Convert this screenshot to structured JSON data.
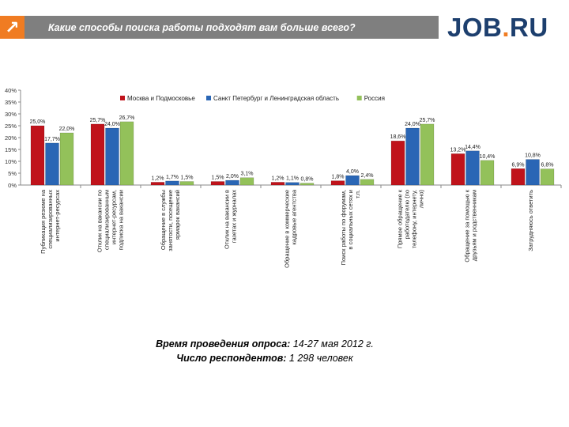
{
  "header": {
    "title": "Какие способы поиска работы подходят вам больше всего?",
    "arrow_icon": "arrow-up-right-icon"
  },
  "logo": {
    "part1": "JOB",
    "dot": ".",
    "part2": "RU"
  },
  "colors": {
    "orange": "#f07c22",
    "navy": "#1d3f6e",
    "gray": "#7f7f7f"
  },
  "footer": {
    "date_label": "Время проведения опроса:",
    "date_value": "14-27 мая 2012 г.",
    "respondents_label": "Число респондентов:",
    "respondents_value": "1 298 человек"
  },
  "chart_data": {
    "type": "bar",
    "ylim": [
      0,
      40
    ],
    "yticks": [
      "0%",
      "5%",
      "10%",
      "15%",
      "20%",
      "25%",
      "30%",
      "35%",
      "40%"
    ],
    "legend_position": "top",
    "categories": [
      "Публикация резюме на специализированных интернет-ресурсах",
      "Отклик на вакансии по специализированным интернет-ресурсам, подписка на вакансии",
      "Обращение в службы занятости, посещение ярмарок вакансий",
      "Отклик на вакансии в газетах и журналах",
      "Обращение в коммерческие кадровые агентства",
      "Поиск работы по форумам, в социальных сетях и т.п.",
      "Прямое обращение к работодателю (по телефону, интернету, лично)",
      "Обращение за помощью к друзьям и родственникам",
      "Затрудняюсь ответить"
    ],
    "series": [
      {
        "name": "Москва и Подмосковье",
        "color": "#c0131b",
        "values": [
          25.0,
          25.7,
          1.2,
          1.5,
          1.2,
          1.8,
          18.6,
          13.2,
          6.9
        ],
        "labels": [
          "25,0%",
          "25,7%",
          "1,2%",
          "1,5%",
          "1,2%",
          "1,8%",
          "18,6%",
          "13,2%",
          "6,9%"
        ]
      },
      {
        "name": "Санкт Петербург и Ленинградская область",
        "color": "#2a66b5",
        "values": [
          17.7,
          24.0,
          1.7,
          2.0,
          1.1,
          4.0,
          24.0,
          14.4,
          10.8
        ],
        "labels": [
          "17,7%",
          "24,0%",
          "1,7%",
          "2,0%",
          "1,1%",
          "4,0%",
          "24,0%",
          "14,4%",
          "10,8%"
        ]
      },
      {
        "name": "Россия",
        "color": "#93c15a",
        "values": [
          22.0,
          26.7,
          1.5,
          3.1,
          0.8,
          2.4,
          25.7,
          10.4,
          6.8
        ],
        "labels": [
          "22,0%",
          "26,7%",
          "1,5%",
          "3,1%",
          "0,8%",
          "2,4%",
          "25,7%",
          "10,4%",
          "6,8%"
        ]
      }
    ]
  }
}
